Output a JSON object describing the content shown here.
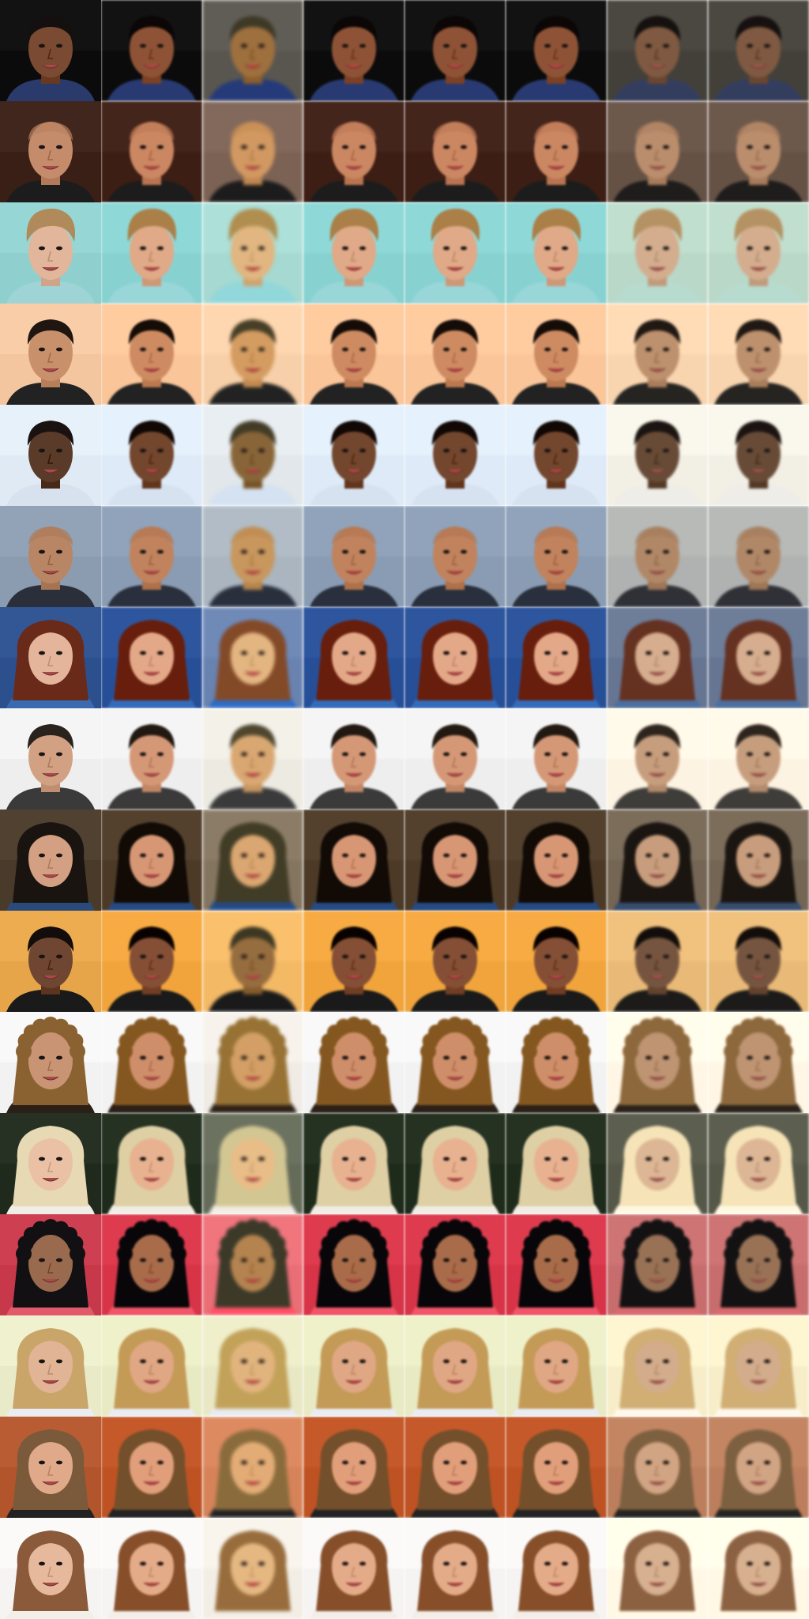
{
  "grid": {
    "rows": 16,
    "columns": 8
  },
  "rows": [
    {
      "bg": "#0b0b0b",
      "skin": "#7a4a33",
      "hair": "#151010",
      "cloth": "#2a3a6a",
      "hair_style": "short"
    },
    {
      "bg": "#3a1f16",
      "skin": "#c58c6c",
      "hair": "#5a3a2a",
      "cloth": "#1c1c1c",
      "hair_style": "bald"
    },
    {
      "bg": "#8fd0cf",
      "skin": "#e1b69a",
      "hair": "#b08a5a",
      "cloth": "#9fd4d6",
      "hair_style": "updo"
    },
    {
      "bg": "#f3c6a0",
      "skin": "#c9906c",
      "hair": "#1f1612",
      "cloth": "#222222",
      "hair_style": "short"
    },
    {
      "bg": "#dfeaf5",
      "skin": "#5a3a28",
      "hair": "#1a1210",
      "cloth": "#d8e2ee",
      "hair_style": "short"
    },
    {
      "bg": "#8b9cb0",
      "skin": "#b88665",
      "hair": "#c9c2b8",
      "cloth": "#2a2f3a",
      "hair_style": "bald"
    },
    {
      "bg": "#2c4f8e",
      "skin": "#e4b59a",
      "hair": "#6a2a1a",
      "cloth": "#3a6bb0",
      "hair_style": "long"
    },
    {
      "bg": "#eeeeee",
      "skin": "#d2a184",
      "hair": "#2a221c",
      "cloth": "#3a3a3a",
      "hair_style": "short"
    },
    {
      "bg": "#4a3a2a",
      "skin": "#d4a083",
      "hair": "#1a1410",
      "cloth": "#2b4a7a",
      "hair_style": "long"
    },
    {
      "bg": "#e7a54a",
      "skin": "#6e4632",
      "hair": "#120c0a",
      "cloth": "#1a1a1a",
      "hair_style": "short"
    },
    {
      "bg": "#f2f2f2",
      "skin": "#c99474",
      "hair": "#8a6232",
      "cloth": "#2a2018",
      "hair_style": "curly"
    },
    {
      "bg": "#1f2a1c",
      "skin": "#ebc1a5",
      "hair": "#e6d9b4",
      "cloth": "#f0ede6",
      "hair_style": "long"
    },
    {
      "bg": "#c7394a",
      "skin": "#9a6a4e",
      "hair": "#121012",
      "cloth": "#e05a6a",
      "hair_style": "curly"
    },
    {
      "bg": "#e8eac8",
      "skin": "#e1b496",
      "hair": "#c9a56a",
      "cloth": "#e9ecf0",
      "hair_style": "long"
    },
    {
      "bg": "#b3552c",
      "skin": "#e0a98a",
      "hair": "#7a5a3a",
      "cloth": "#222222",
      "hair_style": "long"
    },
    {
      "bg": "#f6f4f2",
      "skin": "#e6b89c",
      "hair": "#8a5a3a",
      "cloth": "#f2eee8",
      "hair_style": "long"
    }
  ],
  "columns": [
    {
      "kind": "original"
    },
    {
      "kind": "reconstruction-grainy"
    },
    {
      "kind": "reconstruction-washed"
    },
    {
      "kind": "reconstruction-grainy"
    },
    {
      "kind": "reconstruction-grainy"
    },
    {
      "kind": "reconstruction-grainy"
    },
    {
      "kind": "reconstruction-smooth"
    },
    {
      "kind": "reconstruction-smooth"
    }
  ],
  "icons": {
    "face": "face-thumbnail-icon"
  }
}
